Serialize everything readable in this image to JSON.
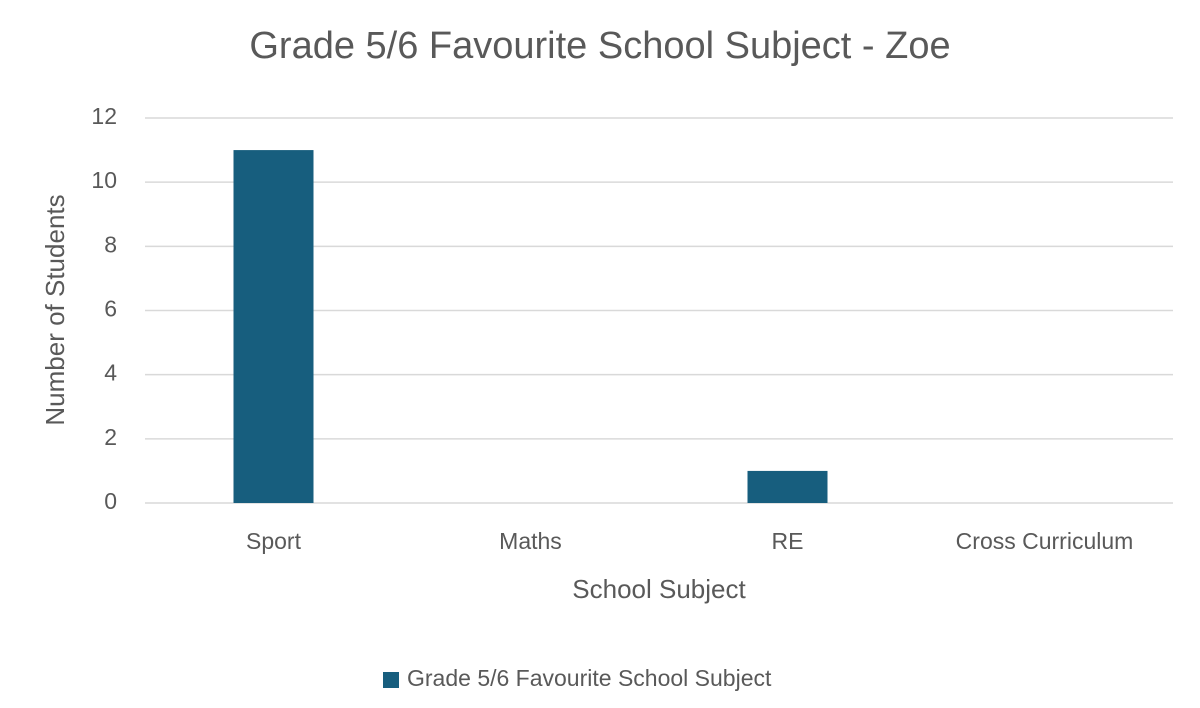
{
  "chart_data": {
    "type": "bar",
    "title": "Grade 5/6 Favourite School Subject - Zoe",
    "x_label": "School Subject",
    "y_label": "Number of Students",
    "categories": [
      "Sport",
      "Maths",
      "RE",
      "Cross Curriculum"
    ],
    "series": [
      {
        "name": "Grade 5/6 Favourite School Subject",
        "color": "#175e7e",
        "values": [
          11,
          0,
          1,
          0
        ]
      }
    ],
    "ylim": [
      0,
      12
    ],
    "yticks": [
      0,
      2,
      4,
      6,
      8,
      10,
      12
    ],
    "grid": true,
    "legend": "bottom"
  }
}
